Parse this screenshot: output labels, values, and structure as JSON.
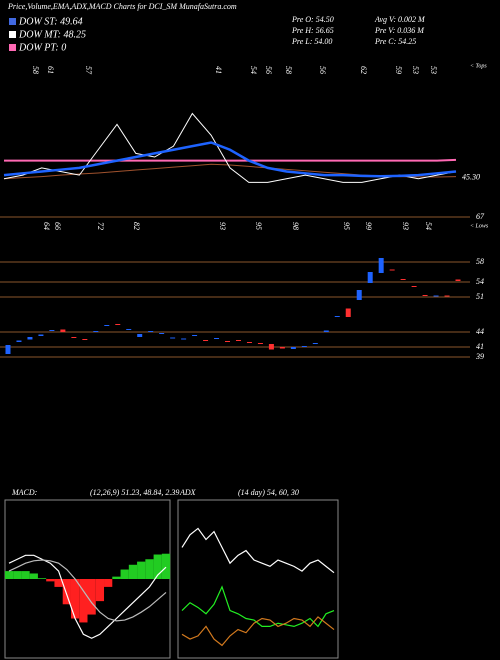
{
  "header": {
    "title": "Price,Volume,EMA,ADX,MACD Charts for DCI_SM MunafaSutra.com",
    "legend": [
      {
        "label": "DOW ST: 49.64",
        "color": "#4169e1"
      },
      {
        "label": "DOW MT: 48.25",
        "color": "#ffffff"
      },
      {
        "label": "DOW PT: 0",
        "color": "#ff69b4"
      }
    ],
    "info": [
      "Pre O: 54.50",
      "Avg V: 0.002 M",
      "Pre H: 56.65",
      "Pre V: 0.036 M",
      "Pre L: 54.00",
      "Pre C: 54.25"
    ]
  },
  "chart_data": [
    {
      "type": "line",
      "ylim": [
        35,
        75
      ],
      "yticks": [
        {
          "value": 45.3,
          "label": "45.30"
        }
      ],
      "tops_labels": [
        "58",
        "61",
        "57",
        "41",
        "54",
        "56",
        "58",
        "56",
        "62",
        "59",
        "53",
        "53"
      ],
      "tops_title": "< Tops",
      "series": [
        {
          "color": "#ff69b4",
          "width": 2,
          "values": [
            50,
            50,
            50,
            50,
            50,
            50,
            50,
            50,
            50,
            50,
            50,
            50,
            50,
            50,
            50,
            50,
            50,
            50,
            50,
            50,
            50,
            50,
            50,
            50,
            50.2
          ]
        },
        {
          "color": "#a0522d",
          "width": 1,
          "values": [
            45,
            45.3,
            45.6,
            46,
            46.3,
            46.6,
            47,
            47.4,
            47.8,
            48.2,
            48.6,
            49,
            48.8,
            48.4,
            48,
            47.6,
            47.2,
            46.8,
            46.4,
            46,
            45.8,
            45.6,
            45.5,
            45.5,
            45.6
          ]
        },
        {
          "color": "#ffffff",
          "width": 1,
          "values": [
            45,
            46,
            48,
            47,
            46,
            53,
            60,
            52,
            51,
            54,
            63,
            57,
            48,
            44,
            44,
            45,
            46,
            45,
            44,
            44,
            45,
            46,
            45,
            46,
            47
          ]
        },
        {
          "color": "#1e63ff",
          "width": 2.5,
          "values": [
            46,
            46.5,
            47,
            47.5,
            48,
            49,
            50,
            51,
            52,
            53,
            54,
            55,
            53,
            50,
            48,
            47,
            46.5,
            46,
            46,
            45.8,
            45.7,
            45.8,
            46,
            46.5,
            47
          ]
        }
      ]
    },
    {
      "type": "candlestick",
      "ylim": [
        36,
        68
      ],
      "yticks": [
        67,
        58,
        54,
        51,
        44,
        41,
        39
      ],
      "up_color": "#1e63ff",
      "down_color": "#ff3030",
      "lows_labels": [
        "64",
        "66",
        "72",
        "82",
        "93",
        "95",
        "98",
        "95",
        "99",
        "93",
        "54"
      ],
      "lows_title": "< Lows",
      "open": [
        39.6,
        42,
        42.5,
        43.2,
        44.2,
        44.5,
        43,
        42.6,
        44,
        45.2,
        45.6,
        44.5,
        43,
        44,
        43.6,
        42.8,
        42.6,
        43.2,
        42.4,
        42.6,
        42.2,
        42.4,
        42,
        41.8,
        41.6,
        41,
        40.6,
        41,
        41.6,
        44,
        47,
        48.7,
        50.4,
        53.8,
        55.8,
        56.5,
        54.6,
        53.2,
        51.4,
        51.2,
        51.3,
        54.5
      ],
      "close": [
        41.4,
        42.3,
        43,
        43.5,
        44.4,
        44,
        42.8,
        42.4,
        44.2,
        45.4,
        45.5,
        44.6,
        43.6,
        44.2,
        43.8,
        42.9,
        42.7,
        43.4,
        42.2,
        42.8,
        42,
        42.3,
        41.8,
        41.6,
        40.5,
        40.7,
        41,
        41.2,
        41.8,
        44.3,
        47.2,
        47,
        52.4,
        56,
        58.8,
        56.3,
        54.5,
        53.1,
        51.3,
        51.3,
        51.2,
        54.2
      ]
    },
    {
      "type": "macd",
      "title": "MACD:",
      "params": "(12,26,9) 51.23, 48.84, 2.39",
      "ylim": [
        -10,
        10
      ],
      "pos_color": "#22cc22",
      "neg_color": "#ff2020",
      "histogram": [
        1,
        1,
        1,
        0.7,
        0.1,
        -0.3,
        -1,
        -3.2,
        -5,
        -5.5,
        -4.5,
        -2.8,
        -1,
        0.3,
        1.2,
        1.8,
        2.2,
        2.5,
        3.1,
        3.2
      ],
      "series": [
        {
          "color": "#ffffff",
          "values": [
            2,
            2.5,
            3,
            3,
            2.5,
            2,
            1,
            -2,
            -5,
            -7,
            -7.5,
            -7,
            -6,
            -5,
            -4,
            -3,
            -2,
            -1,
            0.5,
            1.5
          ]
        },
        {
          "color": "#bbbbbb",
          "values": [
            1,
            1.5,
            2,
            2.3,
            2.4,
            2.3,
            2,
            1.2,
            0,
            -1.5,
            -3,
            -4.2,
            -5,
            -5.3,
            -5.2,
            -4.8,
            -4.2,
            -3.5,
            -2.6,
            -1.7
          ]
        }
      ]
    },
    {
      "type": "adx",
      "title": "ADX",
      "params": "(14 day) 54, 60, 30",
      "ylim": [
        0,
        100
      ],
      "series": [
        {
          "color": "#ffffff",
          "values": [
            70,
            78,
            82,
            75,
            80,
            70,
            60,
            65,
            68,
            62,
            60,
            58,
            62,
            60,
            58,
            55,
            60,
            62,
            58,
            54
          ]
        },
        {
          "color": "#22ee22",
          "values": [
            30,
            35,
            32,
            28,
            34,
            45,
            30,
            28,
            25,
            24,
            20,
            20,
            22,
            21,
            20,
            22,
            25,
            20,
            28,
            30
          ]
        },
        {
          "color": "#d2791e",
          "values": [
            15,
            12,
            14,
            20,
            12,
            8,
            14,
            18,
            16,
            22,
            25,
            24,
            20,
            22,
            25,
            24,
            20,
            26,
            22,
            18
          ]
        }
      ]
    }
  ]
}
